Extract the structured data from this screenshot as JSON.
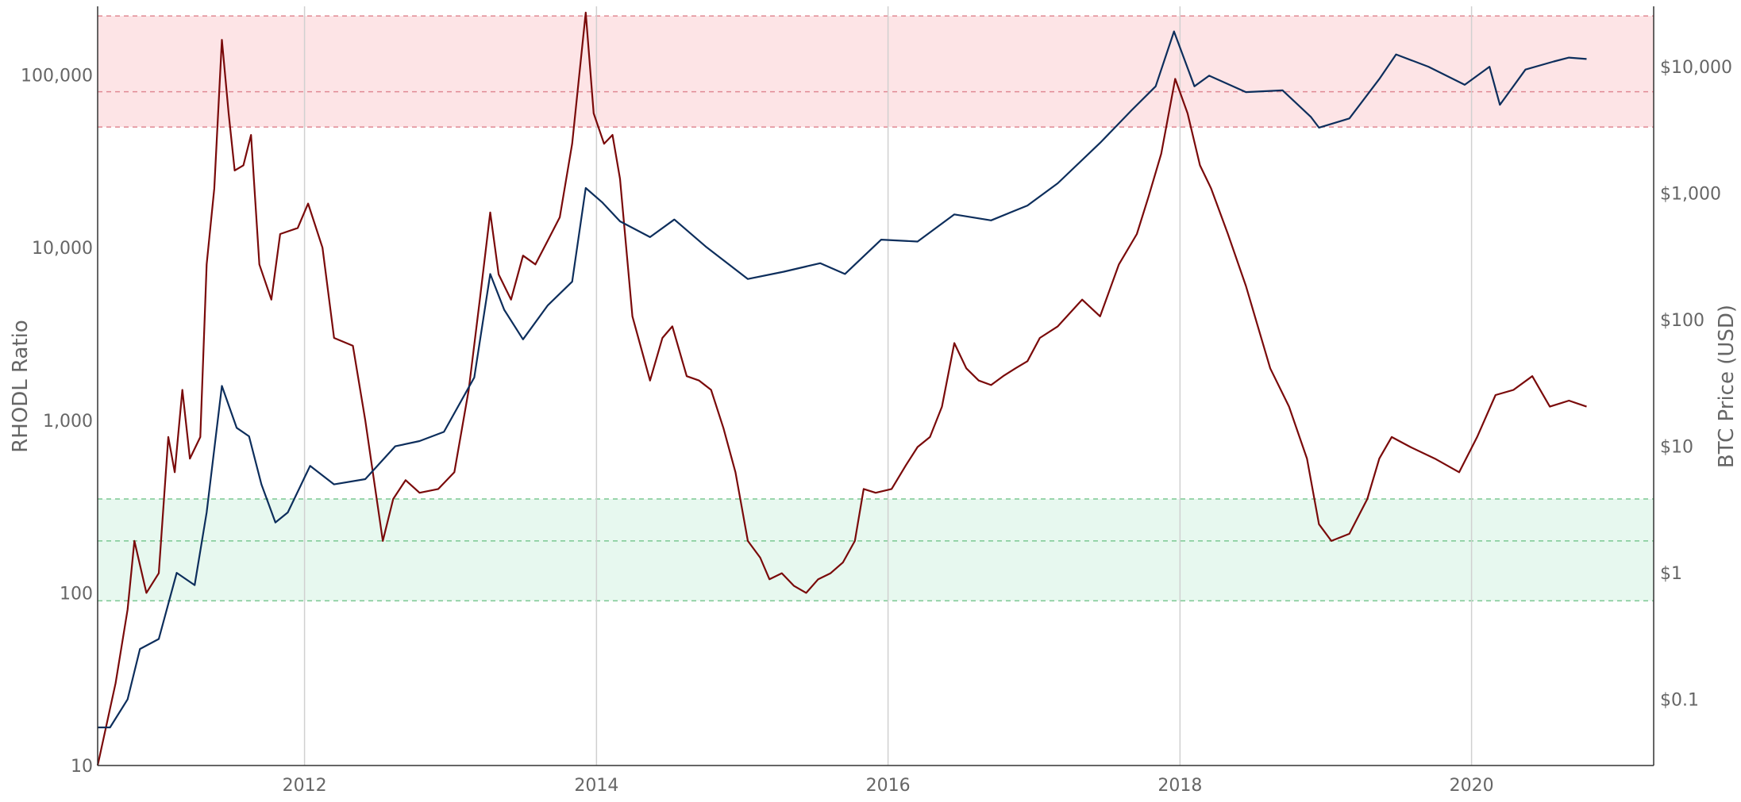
{
  "chart_data": {
    "type": "line",
    "title": "",
    "x_axis": {
      "type": "date",
      "range": [
        "2010-08-01",
        "2021-04-01"
      ],
      "tick_labels": [
        "2012",
        "2014",
        "2016",
        "2018",
        "2020"
      ],
      "tick_dates": [
        "2012-01-01",
        "2014-01-01",
        "2016-01-01",
        "2018-01-01",
        "2020-01-01"
      ],
      "grid": true
    },
    "y_axis_left": {
      "label": "RHODL Ratio",
      "scale": "log",
      "range": [
        10,
        250000
      ],
      "tick_values": [
        10,
        100,
        1000,
        10000,
        100000
      ],
      "tick_labels": [
        "10",
        "100",
        "1,000",
        "10,000",
        "100,000"
      ]
    },
    "y_axis_right": {
      "label": "BTC Price (USD)",
      "scale": "log",
      "range": [
        0.03,
        30000
      ],
      "tick_values": [
        0.1,
        1,
        10,
        100,
        1000,
        10000
      ],
      "tick_labels": [
        "$0.1",
        "$1",
        "$10",
        "$100",
        "$1,000",
        "$10,000"
      ]
    },
    "bands": [
      {
        "name": "top-zone",
        "axis": "left",
        "low": 50000,
        "mid": 80000,
        "high": 220000,
        "color": "#fde4e6",
        "line_color": "#e08a94"
      },
      {
        "name": "bottom-zone",
        "axis": "left",
        "low": 90.0,
        "mid": 200,
        "high": 350,
        "color": "#e7f8ef",
        "line_color": "#7cc792"
      }
    ],
    "series": [
      {
        "axis": "left",
        "color": "#7a0a0a",
        "points": [
          [
            "2010-08-01",
            10
          ],
          [
            "2010-09-15",
            30
          ],
          [
            "2010-10-15",
            80
          ],
          [
            "2010-11-01",
            200
          ],
          [
            "2010-12-01",
            100
          ],
          [
            "2011-01-01",
            130
          ],
          [
            "2011-01-25",
            800
          ],
          [
            "2011-02-10",
            500
          ],
          [
            "2011-03-01",
            1500
          ],
          [
            "2011-03-20",
            600
          ],
          [
            "2011-04-15",
            800
          ],
          [
            "2011-05-01",
            8000
          ],
          [
            "2011-05-20",
            22000
          ],
          [
            "2011-06-08",
            160000
          ],
          [
            "2011-06-25",
            60000
          ],
          [
            "2011-07-10",
            28000
          ],
          [
            "2011-08-01",
            30000
          ],
          [
            "2011-08-20",
            45000
          ],
          [
            "2011-09-10",
            8000
          ],
          [
            "2011-10-10",
            5000
          ],
          [
            "2011-11-01",
            12000
          ],
          [
            "2011-12-15",
            13000
          ],
          [
            "2012-01-10",
            18000
          ],
          [
            "2012-02-15",
            10000
          ],
          [
            "2012-03-15",
            3000
          ],
          [
            "2012-05-01",
            2700
          ],
          [
            "2012-06-01",
            1000
          ],
          [
            "2012-07-15",
            200
          ],
          [
            "2012-08-10",
            350
          ],
          [
            "2012-09-10",
            450
          ],
          [
            "2012-10-15",
            380
          ],
          [
            "2012-12-01",
            400
          ],
          [
            "2013-01-10",
            500
          ],
          [
            "2013-02-15",
            1500
          ],
          [
            "2013-03-15",
            5000
          ],
          [
            "2013-04-10",
            16000
          ],
          [
            "2013-05-01",
            7000
          ],
          [
            "2013-06-01",
            5000
          ],
          [
            "2013-07-01",
            9000
          ],
          [
            "2013-08-01",
            8000
          ],
          [
            "2013-09-01",
            11000
          ],
          [
            "2013-10-01",
            15000
          ],
          [
            "2013-11-01",
            40000
          ],
          [
            "2013-12-05",
            230000
          ],
          [
            "2013-12-25",
            60000
          ],
          [
            "2014-01-20",
            40000
          ],
          [
            "2014-02-10",
            45000
          ],
          [
            "2014-03-01",
            25000
          ],
          [
            "2014-04-01",
            4000
          ],
          [
            "2014-05-15",
            1700
          ],
          [
            "2014-06-15",
            3000
          ],
          [
            "2014-07-10",
            3500
          ],
          [
            "2014-08-15",
            1800
          ],
          [
            "2014-09-15",
            1700
          ],
          [
            "2014-10-15",
            1500
          ],
          [
            "2014-11-15",
            900
          ],
          [
            "2014-12-15",
            500
          ],
          [
            "2015-01-15",
            200
          ],
          [
            "2015-02-15",
            160
          ],
          [
            "2015-03-10",
            120
          ],
          [
            "2015-04-10",
            130
          ],
          [
            "2015-05-10",
            110
          ],
          [
            "2015-06-10",
            100
          ],
          [
            "2015-07-10",
            120
          ],
          [
            "2015-08-10",
            130
          ],
          [
            "2015-09-10",
            150
          ],
          [
            "2015-10-10",
            200
          ],
          [
            "2015-11-01",
            400
          ],
          [
            "2015-12-01",
            380
          ],
          [
            "2016-01-10",
            400
          ],
          [
            "2016-02-15",
            550
          ],
          [
            "2016-03-15",
            700
          ],
          [
            "2016-04-15",
            800
          ],
          [
            "2016-05-15",
            1200
          ],
          [
            "2016-06-15",
            2800
          ],
          [
            "2016-07-15",
            2000
          ],
          [
            "2016-08-15",
            1700
          ],
          [
            "2016-09-15",
            1600
          ],
          [
            "2016-10-15",
            1800
          ],
          [
            "2016-11-15",
            2000
          ],
          [
            "2016-12-15",
            2200
          ],
          [
            "2017-01-15",
            3000
          ],
          [
            "2017-03-01",
            3500
          ],
          [
            "2017-05-01",
            5000
          ],
          [
            "2017-06-15",
            4000
          ],
          [
            "2017-08-01",
            8000
          ],
          [
            "2017-09-15",
            12000
          ],
          [
            "2017-10-15",
            20000
          ],
          [
            "2017-11-15",
            35000
          ],
          [
            "2017-12-20",
            95000
          ],
          [
            "2018-01-20",
            60000
          ],
          [
            "2018-02-20",
            30000
          ],
          [
            "2018-03-20",
            22000
          ],
          [
            "2018-05-01",
            12000
          ],
          [
            "2018-06-15",
            6000
          ],
          [
            "2018-07-15",
            3500
          ],
          [
            "2018-08-15",
            2000
          ],
          [
            "2018-10-01",
            1200
          ],
          [
            "2018-11-15",
            600
          ],
          [
            "2018-12-15",
            250
          ],
          [
            "2019-01-15",
            200
          ],
          [
            "2019-03-01",
            220
          ],
          [
            "2019-04-15",
            350
          ],
          [
            "2019-05-15",
            600
          ],
          [
            "2019-06-15",
            800
          ],
          [
            "2019-08-01",
            700
          ],
          [
            "2019-10-01",
            600
          ],
          [
            "2019-12-01",
            500
          ],
          [
            "2020-01-15",
            800
          ],
          [
            "2020-03-01",
            1400
          ],
          [
            "2020-04-15",
            1500
          ],
          [
            "2020-06-01",
            1800
          ],
          [
            "2020-07-15",
            1200
          ],
          [
            "2020-09-01",
            1300
          ],
          [
            "2020-10-15",
            1200
          ]
        ]
      },
      {
        "axis": "right",
        "color": "#0d2e5c",
        "points": [
          [
            "2010-08-01",
            0.06
          ],
          [
            "2010-09-01",
            0.06
          ],
          [
            "2010-10-15",
            0.1
          ],
          [
            "2010-11-15",
            0.25
          ],
          [
            "2011-01-01",
            0.3
          ],
          [
            "2011-02-15",
            1.0
          ],
          [
            "2011-04-01",
            0.8
          ],
          [
            "2011-05-01",
            3.0
          ],
          [
            "2011-06-08",
            30
          ],
          [
            "2011-07-15",
            14
          ],
          [
            "2011-08-15",
            12
          ],
          [
            "2011-09-15",
            5
          ],
          [
            "2011-10-20",
            2.5
          ],
          [
            "2011-11-20",
            3
          ],
          [
            "2012-01-15",
            7
          ],
          [
            "2012-03-15",
            5
          ],
          [
            "2012-06-01",
            5.5
          ],
          [
            "2012-08-15",
            10
          ],
          [
            "2012-10-15",
            11
          ],
          [
            "2012-12-15",
            13
          ],
          [
            "2013-03-01",
            35
          ],
          [
            "2013-04-10",
            230
          ],
          [
            "2013-05-15",
            120
          ],
          [
            "2013-07-01",
            70
          ],
          [
            "2013-09-01",
            130
          ],
          [
            "2013-11-01",
            200
          ],
          [
            "2013-12-05",
            1100
          ],
          [
            "2014-01-15",
            850
          ],
          [
            "2014-03-01",
            600
          ],
          [
            "2014-05-15",
            450
          ],
          [
            "2014-07-15",
            620
          ],
          [
            "2014-10-01",
            380
          ],
          [
            "2015-01-15",
            210
          ],
          [
            "2015-04-15",
            240
          ],
          [
            "2015-07-15",
            280
          ],
          [
            "2015-09-15",
            230
          ],
          [
            "2015-12-15",
            430
          ],
          [
            "2016-03-15",
            415
          ],
          [
            "2016-06-15",
            680
          ],
          [
            "2016-09-15",
            610
          ],
          [
            "2016-12-15",
            800
          ],
          [
            "2017-03-01",
            1200
          ],
          [
            "2017-06-15",
            2500
          ],
          [
            "2017-09-01",
            4500
          ],
          [
            "2017-11-01",
            7000
          ],
          [
            "2017-12-17",
            19000
          ],
          [
            "2018-02-06",
            7000
          ],
          [
            "2018-03-15",
            8500
          ],
          [
            "2018-06-15",
            6300
          ],
          [
            "2018-09-15",
            6500
          ],
          [
            "2018-11-25",
            4000
          ],
          [
            "2018-12-15",
            3300
          ],
          [
            "2019-03-01",
            3900
          ],
          [
            "2019-05-15",
            8000
          ],
          [
            "2019-06-26",
            12500
          ],
          [
            "2019-09-15",
            10000
          ],
          [
            "2019-12-15",
            7200
          ],
          [
            "2020-02-15",
            10000
          ],
          [
            "2020-03-12",
            5000
          ],
          [
            "2020-05-15",
            9500
          ],
          [
            "2020-07-25",
            11000
          ],
          [
            "2020-09-01",
            11800
          ],
          [
            "2020-10-15",
            11500
          ]
        ]
      }
    ]
  }
}
